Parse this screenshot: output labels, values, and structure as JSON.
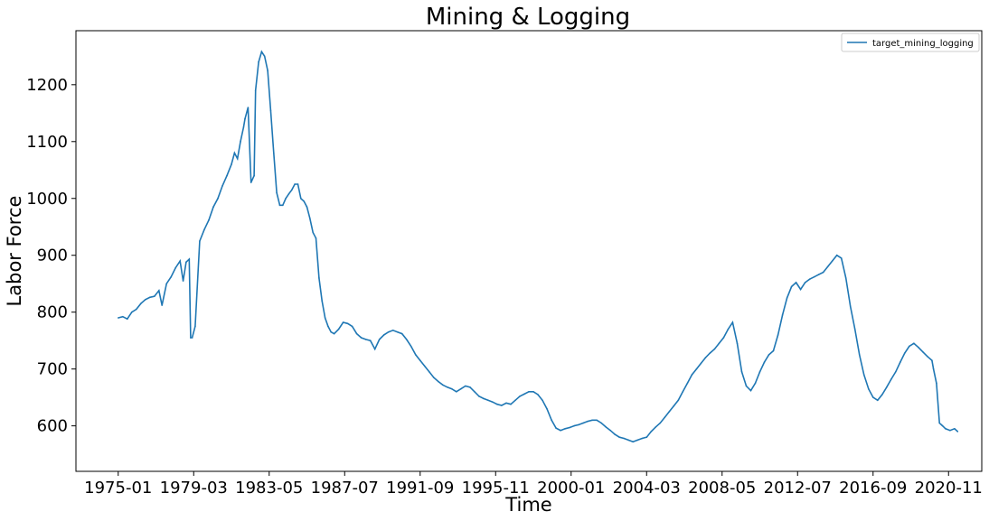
{
  "chart_data": {
    "type": "line",
    "title": "Mining & Logging",
    "xlabel": "Time",
    "ylabel": "Labor Force",
    "xlim": [
      "1972-09",
      "2022-09"
    ],
    "ylim": [
      520,
      1295
    ],
    "grid": false,
    "legend_position": "top-right",
    "x_tick_labels": [
      "1975-01",
      "1979-03",
      "1983-05",
      "1987-07",
      "1991-09",
      "1995-11",
      "2000-01",
      "2004-03",
      "2008-05",
      "2012-07",
      "2016-09",
      "2020-11"
    ],
    "y_ticks": [
      600,
      700,
      800,
      900,
      1000,
      1100,
      1200
    ],
    "series": [
      {
        "name": "target_mining_logging",
        "color": "#1f77b4",
        "x": [
          "1975-01",
          "1975-04",
          "1975-07",
          "1975-10",
          "1976-01",
          "1976-04",
          "1976-07",
          "1976-10",
          "1977-01",
          "1977-04",
          "1977-06",
          "1977-09",
          "1977-12",
          "1978-03",
          "1978-06",
          "1978-08",
          "1978-10",
          "1978-12",
          "1979-01",
          "1979-02",
          "1979-04",
          "1979-07",
          "1979-10",
          "1980-01",
          "1980-04",
          "1980-07",
          "1980-10",
          "1981-01",
          "1981-04",
          "1981-06",
          "1981-08",
          "1981-10",
          "1981-12",
          "1982-01",
          "1982-03",
          "1982-05",
          "1982-07",
          "1982-08",
          "1982-10",
          "1982-12",
          "1983-02",
          "1983-04",
          "1983-06",
          "1983-08",
          "1983-10",
          "1983-12",
          "1984-02",
          "1984-04",
          "1984-06",
          "1984-08",
          "1984-10",
          "1984-12",
          "1985-02",
          "1985-04",
          "1985-06",
          "1985-08",
          "1985-10",
          "1985-12",
          "1986-02",
          "1986-04",
          "1986-06",
          "1986-08",
          "1986-10",
          "1986-12",
          "1987-03",
          "1987-06",
          "1987-09",
          "1987-12",
          "1988-03",
          "1988-06",
          "1988-09",
          "1988-12",
          "1989-03",
          "1989-06",
          "1989-09",
          "1989-12",
          "1990-03",
          "1990-06",
          "1990-09",
          "1990-12",
          "1991-03",
          "1991-06",
          "1991-09",
          "1991-12",
          "1992-03",
          "1992-06",
          "1992-09",
          "1992-12",
          "1993-03",
          "1993-06",
          "1993-09",
          "1993-12",
          "1994-03",
          "1994-06",
          "1994-09",
          "1994-12",
          "1995-03",
          "1995-06",
          "1995-09",
          "1995-12",
          "1996-03",
          "1996-06",
          "1996-09",
          "1996-12",
          "1997-03",
          "1997-06",
          "1997-09",
          "1997-12",
          "1998-03",
          "1998-06",
          "1998-09",
          "1998-12",
          "1999-03",
          "1999-06",
          "1999-09",
          "1999-12",
          "2000-03",
          "2000-06",
          "2000-09",
          "2000-12",
          "2001-03",
          "2001-06",
          "2001-09",
          "2001-12",
          "2002-03",
          "2002-06",
          "2002-09",
          "2002-12",
          "2003-03",
          "2003-06",
          "2003-09",
          "2003-12",
          "2004-03",
          "2004-06",
          "2004-09",
          "2004-12",
          "2005-03",
          "2005-06",
          "2005-09",
          "2005-12",
          "2006-03",
          "2006-06",
          "2006-09",
          "2006-12",
          "2007-03",
          "2007-06",
          "2007-09",
          "2007-12",
          "2008-03",
          "2008-06",
          "2008-09",
          "2008-12",
          "2009-03",
          "2009-06",
          "2009-09",
          "2009-12",
          "2010-03",
          "2010-06",
          "2010-09",
          "2010-12",
          "2011-03",
          "2011-06",
          "2011-09",
          "2011-12",
          "2012-03",
          "2012-06",
          "2012-09",
          "2012-12",
          "2013-03",
          "2013-06",
          "2013-09",
          "2013-12",
          "2014-03",
          "2014-06",
          "2014-09",
          "2014-12",
          "2015-03",
          "2015-06",
          "2015-09",
          "2015-12",
          "2016-03",
          "2016-06",
          "2016-09",
          "2016-12",
          "2017-03",
          "2017-06",
          "2017-09",
          "2017-12",
          "2018-03",
          "2018-06",
          "2018-09",
          "2018-12",
          "2019-03",
          "2019-06",
          "2019-09",
          "2019-12",
          "2020-01",
          "2020-03",
          "2020-05",
          "2020-07",
          "2020-09",
          "2020-12",
          "2021-03",
          "2021-05"
        ],
        "values": [
          790,
          792,
          788,
          800,
          805,
          815,
          822,
          826,
          828,
          838,
          812,
          850,
          862,
          878,
          890,
          855,
          888,
          893,
          755,
          755,
          775,
          925,
          945,
          962,
          985,
          1000,
          1022,
          1040,
          1060,
          1080,
          1070,
          1100,
          1125,
          1140,
          1160,
          1028,
          1040,
          1190,
          1240,
          1258,
          1250,
          1225,
          1155,
          1080,
          1010,
          988,
          988,
          1000,
          1008,
          1015,
          1025,
          1025,
          1000,
          995,
          985,
          965,
          940,
          930,
          860,
          820,
          790,
          775,
          765,
          762,
          770,
          782,
          780,
          775,
          762,
          755,
          752,
          750,
          735,
          752,
          760,
          765,
          768,
          765,
          762,
          752,
          740,
          725,
          715,
          705,
          695,
          685,
          678,
          672,
          668,
          665,
          660,
          665,
          670,
          668,
          660,
          652,
          648,
          645,
          642,
          638,
          636,
          640,
          638,
          645,
          652,
          656,
          660,
          660,
          655,
          645,
          630,
          610,
          596,
          592,
          595,
          597,
          600,
          602,
          605,
          608,
          610,
          610,
          605,
          598,
          592,
          585,
          580,
          578,
          575,
          572,
          575,
          578,
          580,
          590,
          598,
          605,
          615,
          625,
          635,
          645,
          660,
          675,
          690,
          700,
          710,
          720,
          728,
          735,
          745,
          755,
          770,
          782,
          745,
          695,
          670,
          662,
          675,
          695,
          712,
          725,
          732,
          760,
          795,
          825,
          845,
          852,
          840,
          852,
          858,
          862,
          866,
          870,
          880,
          890,
          900,
          895,
          860,
          810,
          770,
          725,
          690,
          665,
          650,
          645,
          655,
          668,
          682,
          695,
          712,
          728,
          740,
          745,
          738,
          730,
          722,
          715,
          700,
          675,
          605,
          600,
          595,
          592,
          595,
          590
        ]
      }
    ]
  }
}
